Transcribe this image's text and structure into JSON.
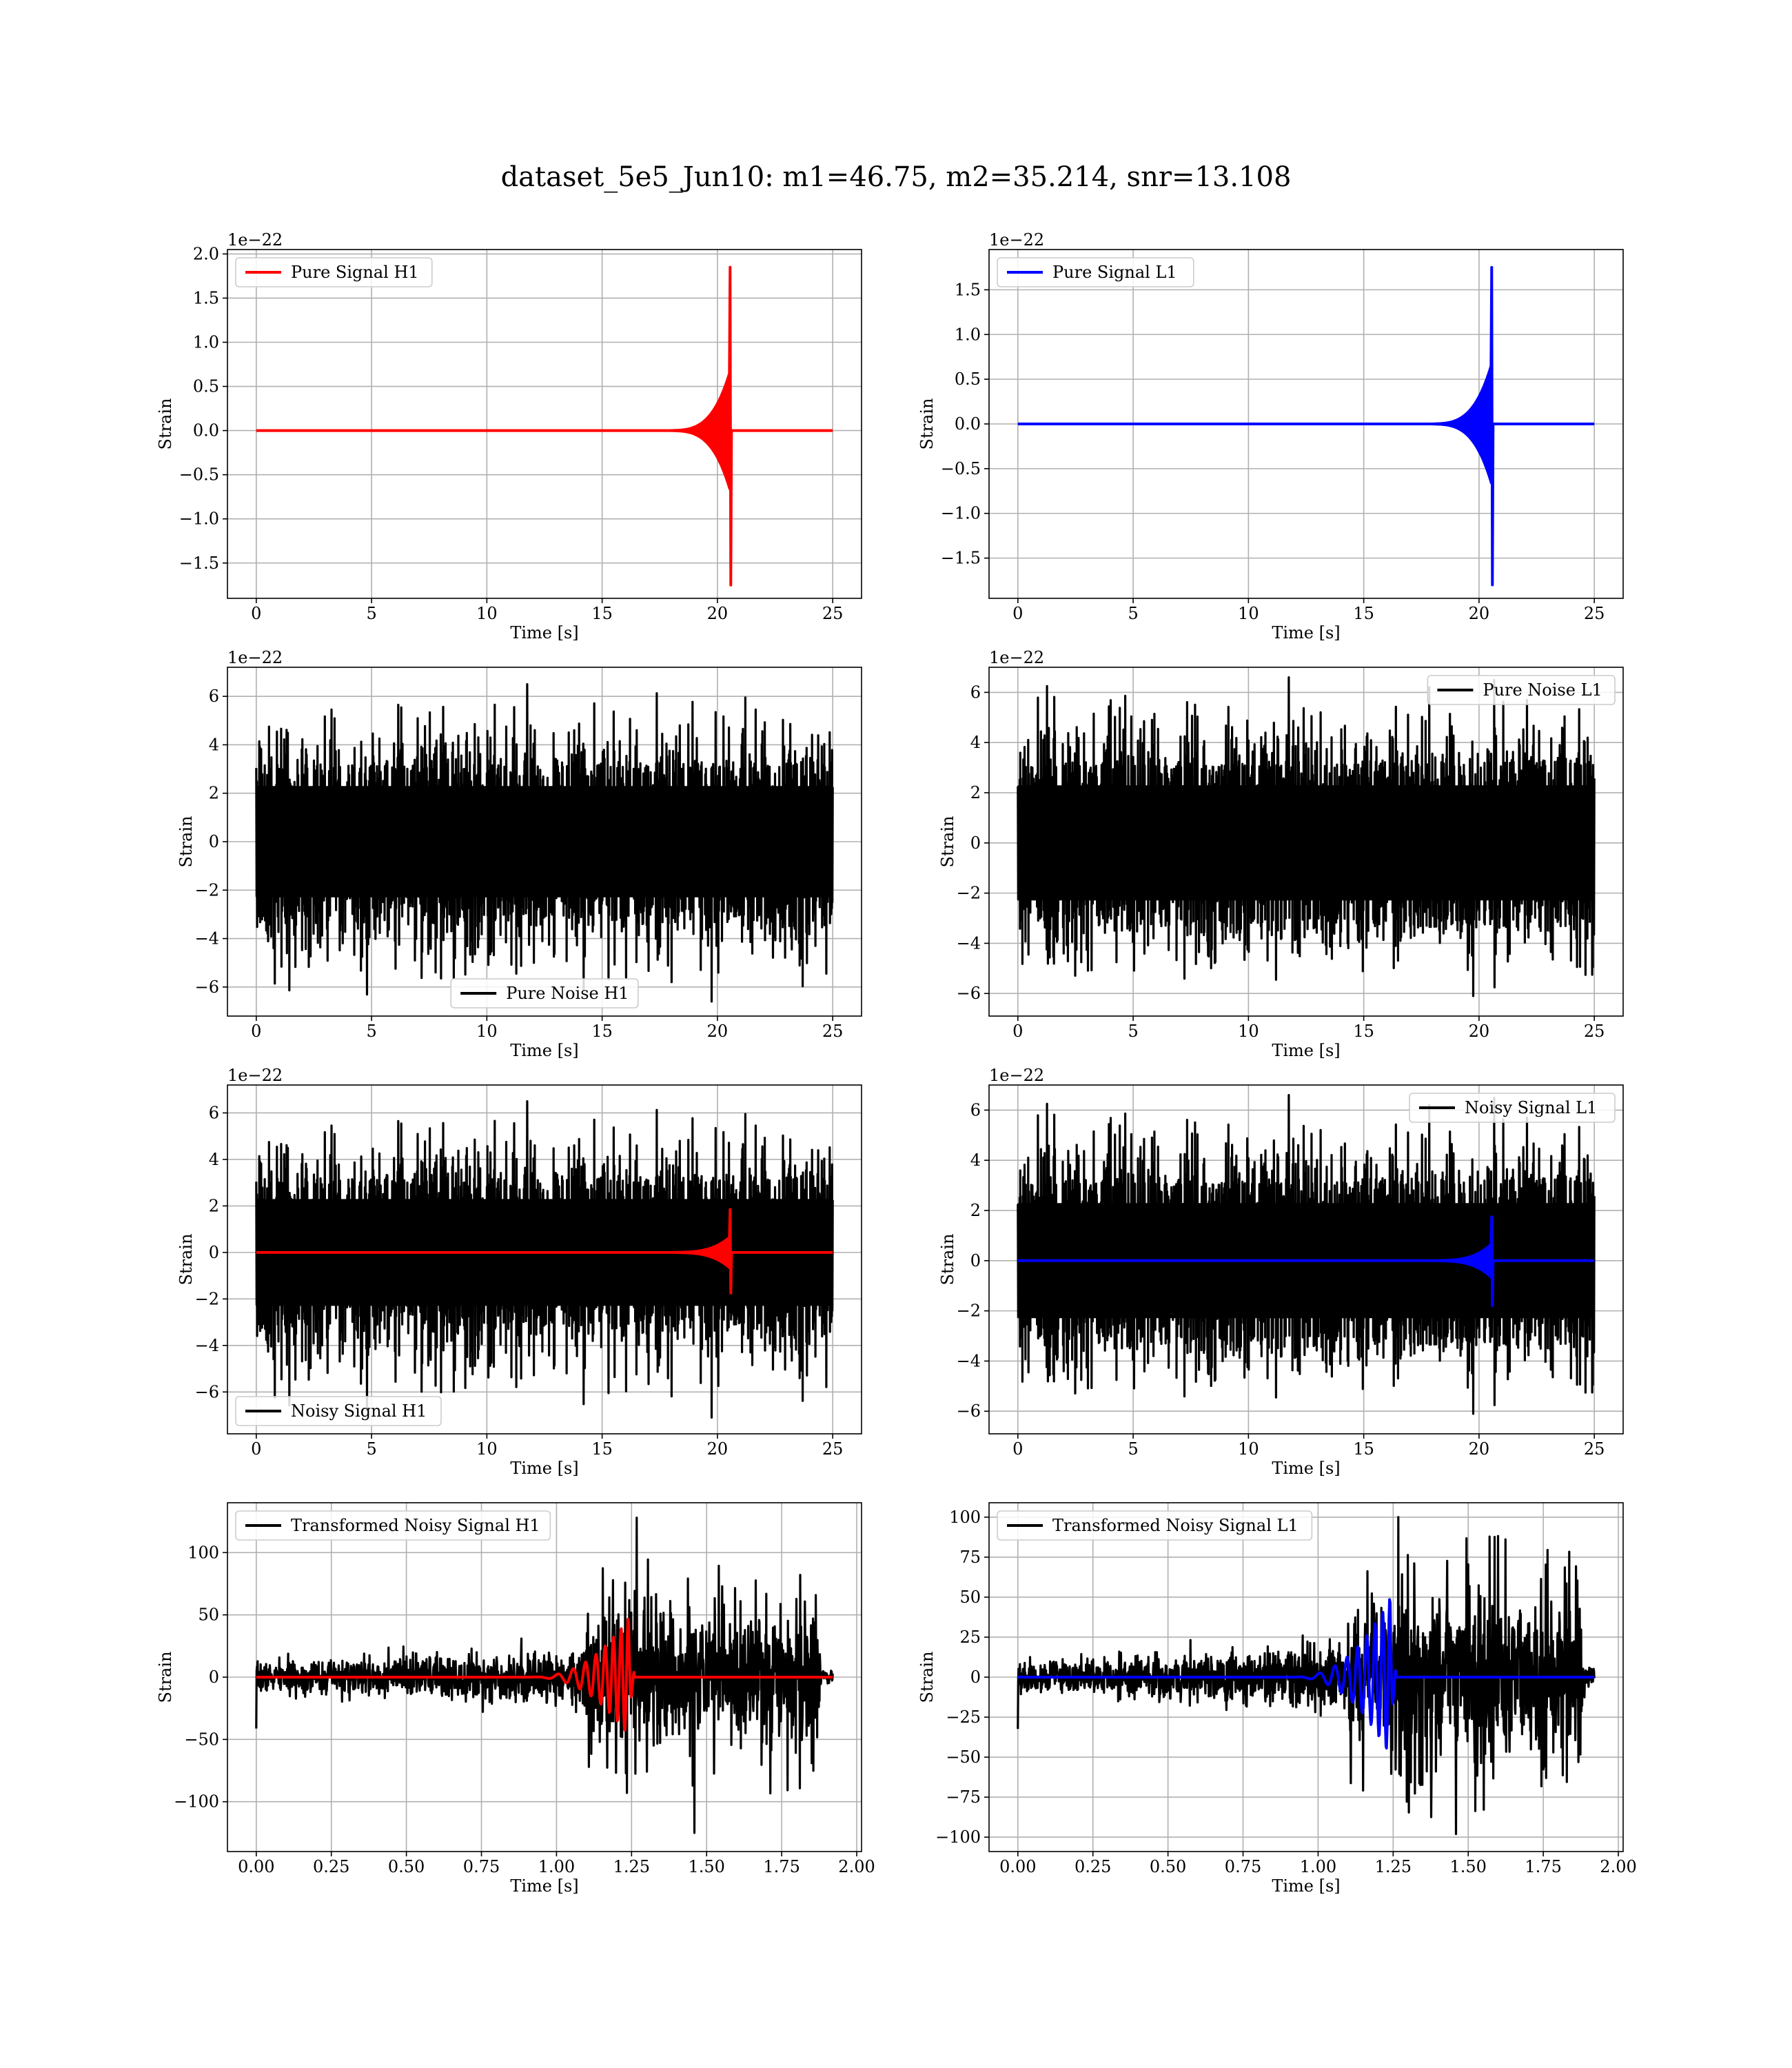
{
  "figure": {
    "title": "dataset_5e5_Jun10: m1=46.75, m2=35.214, snr=13.108"
  },
  "colors": {
    "h1_signal": "#ff0000",
    "l1_signal": "#0000ff",
    "noise": "#000000",
    "grid": "#b0b0b0"
  },
  "chart_data": [
    {
      "id": "pure-signal-h1",
      "type": "line",
      "xlabel": "Time [s]",
      "ylabel": "Strain",
      "offset_text": "1e−22",
      "xlim": [
        -1.25,
        26.25
      ],
      "ylim": [
        -1.9,
        2.05
      ],
      "xticks": [
        0,
        5,
        10,
        15,
        20,
        25
      ],
      "xtick_labels": [
        "0",
        "5",
        "10",
        "15",
        "20",
        "25"
      ],
      "yticks": [
        -1.5,
        -1.0,
        -0.5,
        0.0,
        0.5,
        1.0,
        1.5,
        2.0
      ],
      "ytick_labels": [
        "−1.5",
        "−1.0",
        "−0.5",
        "0.0",
        "0.5",
        "1.0",
        "1.5",
        "2.0"
      ],
      "legend_position": "top-left",
      "grid": true,
      "series": [
        {
          "name": "Pure Signal H1",
          "color": "#ff0000",
          "kind": "chirp",
          "x_range": [
            0,
            25
          ],
          "chirp_start": 17.5,
          "merger": 20.55,
          "peak_pos": 1.85,
          "peak_neg": -1.75,
          "envelope_end": 0.75
        }
      ]
    },
    {
      "id": "pure-signal-l1",
      "type": "line",
      "xlabel": "Time [s]",
      "ylabel": "Strain",
      "offset_text": "1e−22",
      "xlim": [
        -1.25,
        26.25
      ],
      "ylim": [
        -1.95,
        1.95
      ],
      "xticks": [
        0,
        5,
        10,
        15,
        20,
        25
      ],
      "xtick_labels": [
        "0",
        "5",
        "10",
        "15",
        "20",
        "25"
      ],
      "yticks": [
        -1.5,
        -1.0,
        -0.5,
        0.0,
        0.5,
        1.0,
        1.5
      ],
      "ytick_labels": [
        "−1.5",
        "−1.0",
        "−0.5",
        "0.0",
        "0.5",
        "1.0",
        "1.5"
      ],
      "legend_position": "top-left",
      "grid": true,
      "series": [
        {
          "name": "Pure Signal L1",
          "color": "#0000ff",
          "kind": "chirp",
          "x_range": [
            0,
            25
          ],
          "chirp_start": 17.5,
          "merger": 20.55,
          "peak_pos": 1.75,
          "peak_neg": -1.8,
          "envelope_end": 0.75
        }
      ]
    },
    {
      "id": "pure-noise-h1",
      "type": "line",
      "xlabel": "Time [s]",
      "ylabel": "Strain",
      "offset_text": "1e−22",
      "xlim": [
        -1.25,
        26.25
      ],
      "ylim": [
        -7.2,
        7.2
      ],
      "xticks": [
        0,
        5,
        10,
        15,
        20,
        25
      ],
      "xtick_labels": [
        "0",
        "5",
        "10",
        "15",
        "20",
        "25"
      ],
      "yticks": [
        -6,
        -4,
        -2,
        0,
        2,
        4,
        6
      ],
      "ytick_labels": [
        "−6",
        "−4",
        "−2",
        "0",
        "2",
        "4",
        "6"
      ],
      "legend_position": "bottom-center",
      "grid": true,
      "series": [
        {
          "name": "Pure Noise H1",
          "color": "#000000",
          "kind": "noise",
          "x_range": [
            0,
            25
          ],
          "core": 3.0,
          "spike_max": 6.5,
          "spike_min": -6.6,
          "seed": 11
        }
      ]
    },
    {
      "id": "pure-noise-l1",
      "type": "line",
      "xlabel": "Time [s]",
      "ylabel": "Strain",
      "offset_text": "1e−22",
      "xlim": [
        -1.25,
        26.25
      ],
      "ylim": [
        -6.9,
        7.0
      ],
      "xticks": [
        0,
        5,
        10,
        15,
        20,
        25
      ],
      "xtick_labels": [
        "0",
        "5",
        "10",
        "15",
        "20",
        "25"
      ],
      "yticks": [
        -6,
        -4,
        -2,
        0,
        2,
        4,
        6
      ],
      "ytick_labels": [
        "−6",
        "−4",
        "−2",
        "0",
        "2",
        "4",
        "6"
      ],
      "legend_position": "top-right",
      "grid": true,
      "series": [
        {
          "name": "Pure Noise L1",
          "color": "#000000",
          "kind": "noise",
          "x_range": [
            0,
            25
          ],
          "core": 3.0,
          "spike_max": 6.6,
          "spike_min": -6.1,
          "seed": 23
        }
      ]
    },
    {
      "id": "noisy-signal-h1",
      "type": "line",
      "xlabel": "Time [s]",
      "ylabel": "Strain",
      "offset_text": "1e−22",
      "xlim": [
        -1.25,
        26.25
      ],
      "ylim": [
        -7.8,
        7.2
      ],
      "xticks": [
        0,
        5,
        10,
        15,
        20,
        25
      ],
      "xtick_labels": [
        "0",
        "5",
        "10",
        "15",
        "20",
        "25"
      ],
      "yticks": [
        -6,
        -4,
        -2,
        0,
        2,
        4,
        6
      ],
      "ytick_labels": [
        "−6",
        "−4",
        "−2",
        "0",
        "2",
        "4",
        "6"
      ],
      "legend_position": "bottom-left",
      "grid": true,
      "series": [
        {
          "name": "Noisy Signal H1",
          "color": "#000000",
          "kind": "noise",
          "x_range": [
            0,
            25
          ],
          "core": 3.0,
          "spike_max": 6.5,
          "spike_min": -7.1,
          "seed": 11
        },
        {
          "name": "",
          "color": "#ff0000",
          "kind": "chirp",
          "x_range": [
            0,
            25
          ],
          "chirp_start": 17.5,
          "merger": 20.55,
          "peak_pos": 1.85,
          "peak_neg": -1.75,
          "envelope_end": 0.75
        }
      ]
    },
    {
      "id": "noisy-signal-l1",
      "type": "line",
      "xlabel": "Time [s]",
      "ylabel": "Strain",
      "offset_text": "1e−22",
      "xlim": [
        -1.25,
        26.25
      ],
      "ylim": [
        -6.9,
        7.0
      ],
      "xticks": [
        0,
        5,
        10,
        15,
        20,
        25
      ],
      "xtick_labels": [
        "0",
        "5",
        "10",
        "15",
        "20",
        "25"
      ],
      "yticks": [
        -6,
        -4,
        -2,
        0,
        2,
        4,
        6
      ],
      "ytick_labels": [
        "−6",
        "−4",
        "−2",
        "0",
        "2",
        "4",
        "6"
      ],
      "legend_position": "top-right",
      "grid": true,
      "series": [
        {
          "name": "Noisy Signal L1",
          "color": "#000000",
          "kind": "noise",
          "x_range": [
            0,
            25
          ],
          "core": 3.0,
          "spike_max": 6.6,
          "spike_min": -6.1,
          "seed": 23
        },
        {
          "name": "",
          "color": "#0000ff",
          "kind": "chirp",
          "x_range": [
            0,
            25
          ],
          "chirp_start": 17.5,
          "merger": 20.55,
          "peak_pos": 1.75,
          "peak_neg": -1.8,
          "envelope_end": 0.75
        }
      ]
    },
    {
      "id": "transformed-noisy-signal-h1",
      "type": "line",
      "xlabel": "Time [s]",
      "ylabel": "Strain",
      "offset_text": "",
      "xlim": [
        -0.096,
        2.016
      ],
      "ylim": [
        -140,
        140
      ],
      "xticks": [
        0.0,
        0.25,
        0.5,
        0.75,
        1.0,
        1.25,
        1.5,
        1.75,
        2.0
      ],
      "xtick_labels": [
        "0.00",
        "0.25",
        "0.50",
        "0.75",
        "1.00",
        "1.25",
        "1.50",
        "1.75",
        "2.00"
      ],
      "yticks": [
        -100,
        -50,
        0,
        50,
        100
      ],
      "ytick_labels": [
        "−100",
        "−50",
        "0",
        "50",
        "100"
      ],
      "legend_position": "top-left",
      "grid": true,
      "series": [
        {
          "name": "Transformed Noisy Signal H1",
          "color": "#000000",
          "kind": "whitened",
          "x_range": [
            0,
            1.92
          ],
          "jump": 1.1,
          "low_early": 10,
          "low_late": 20,
          "high": 45,
          "taper_end": 1.88,
          "spike_max": 128,
          "spike_min": -125,
          "seed": 7
        },
        {
          "name": "",
          "color": "#ff0000",
          "kind": "wchirp",
          "x_range": [
            0,
            1.92
          ],
          "chirp_start": 0.9,
          "merger": 1.24,
          "peak": 48
        }
      ]
    },
    {
      "id": "transformed-noisy-signal-l1",
      "type": "line",
      "xlabel": "Time [s]",
      "ylabel": "Strain",
      "offset_text": "",
      "xlim": [
        -0.096,
        2.016
      ],
      "ylim": [
        -109,
        109
      ],
      "xticks": [
        0.0,
        0.25,
        0.5,
        0.75,
        1.0,
        1.25,
        1.5,
        1.75,
        2.0
      ],
      "xtick_labels": [
        "0.00",
        "0.25",
        "0.50",
        "0.75",
        "1.00",
        "1.25",
        "1.50",
        "1.75",
        "2.00"
      ],
      "yticks": [
        -100,
        -75,
        -50,
        -25,
        0,
        25,
        50,
        75,
        100
      ],
      "ytick_labels": [
        "−100",
        "−75",
        "−50",
        "−25",
        "0",
        "25",
        "50",
        "75",
        "100"
      ],
      "legend_position": "top-left",
      "grid": true,
      "series": [
        {
          "name": "Transformed Noisy Signal L1",
          "color": "#000000",
          "kind": "whitened",
          "x_range": [
            0,
            1.92
          ],
          "jump": 1.1,
          "low_early": 8,
          "low_late": 18,
          "high": 42,
          "taper_end": 1.88,
          "spike_max": 100,
          "spike_min": -98,
          "seed": 19
        },
        {
          "name": "",
          "color": "#0000ff",
          "kind": "wchirp",
          "x_range": [
            0,
            1.92
          ],
          "chirp_start": 0.9,
          "merger": 1.24,
          "peak": 50
        }
      ]
    }
  ]
}
